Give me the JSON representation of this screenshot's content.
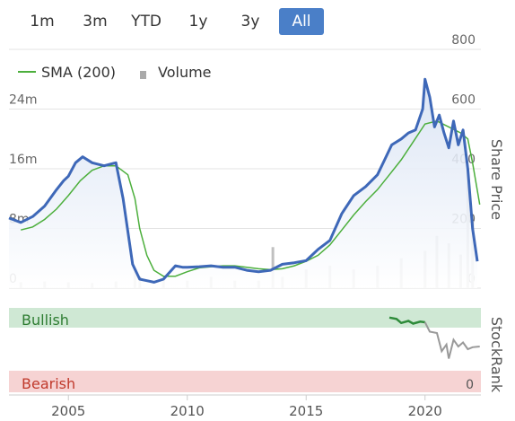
{
  "range_selector": {
    "buttons": [
      "1m",
      "3m",
      "YTD",
      "1y",
      "3y",
      "All"
    ],
    "active": "All",
    "active_color": "#4a7fc8"
  },
  "legend": {
    "sma_label": "SMA (200)",
    "volume_label": "Volume"
  },
  "colors": {
    "price": "#3e68b8",
    "sma": "#4caf3c",
    "volume": "#c0c0c0",
    "bullish_band": "#cfe8d4",
    "bearish_band": "#f6d3d3",
    "stockrank_bull": "#2e8b3a",
    "stockrank": "#999999"
  },
  "chart_data": {
    "type": "line",
    "x_ticks": [
      "2005",
      "2010",
      "2015",
      "2020"
    ],
    "y_right_label": "Share Price",
    "y_right_ticks": [
      "0",
      "200",
      "400",
      "600",
      "800"
    ],
    "y_right_range": [
      0,
      800
    ],
    "y_left_ticks": [
      "0",
      "8m",
      "16m",
      "24m"
    ],
    "y_left_range": [
      0,
      32000000
    ],
    "series": [
      {
        "name": "Share Price",
        "x": [
          2002.5,
          2003.0,
          2003.5,
          2004.0,
          2004.5,
          2004.8,
          2005.0,
          2005.3,
          2005.6,
          2006.0,
          2006.5,
          2007.0,
          2007.3,
          2007.5,
          2007.7,
          2008.0,
          2008.3,
          2008.6,
          2009.0,
          2009.5,
          2009.8,
          2010.0,
          2010.5,
          2011.0,
          2011.5,
          2012.0,
          2012.5,
          2013.0,
          2013.5,
          2014.0,
          2014.5,
          2015.0,
          2015.5,
          2016.0,
          2016.5,
          2017.0,
          2017.5,
          2018.0,
          2018.3,
          2018.6,
          2019.0,
          2019.3,
          2019.6,
          2019.9,
          2020.0,
          2020.2,
          2020.4,
          2020.6,
          2020.8,
          2021.0,
          2021.2,
          2021.4,
          2021.6,
          2021.8,
          2022.0,
          2022.2
        ],
        "y": [
          235,
          220,
          240,
          275,
          330,
          360,
          375,
          420,
          440,
          420,
          410,
          420,
          300,
          190,
          80,
          30,
          25,
          20,
          30,
          75,
          70,
          70,
          72,
          75,
          70,
          70,
          60,
          55,
          60,
          80,
          85,
          92,
          130,
          160,
          250,
          310,
          340,
          380,
          430,
          480,
          500,
          520,
          530,
          600,
          700,
          640,
          540,
          580,
          520,
          470,
          560,
          480,
          530,
          400,
          200,
          90
        ]
      },
      {
        "name": "SMA (200)",
        "x": [
          2003.0,
          2003.5,
          2004.0,
          2004.5,
          2005.0,
          2005.5,
          2006.0,
          2006.5,
          2007.0,
          2007.5,
          2007.8,
          2008.0,
          2008.3,
          2008.6,
          2009.0,
          2009.5,
          2010.0,
          2010.5,
          2011.0,
          2011.5,
          2012.0,
          2012.5,
          2013.0,
          2013.5,
          2014.0,
          2014.5,
          2015.0,
          2015.5,
          2016.0,
          2016.5,
          2017.0,
          2017.5,
          2018.0,
          2018.5,
          2019.0,
          2019.5,
          2020.0,
          2020.5,
          2021.0,
          2021.5,
          2021.8,
          2022.0,
          2022.3
        ],
        "y": [
          195,
          205,
          230,
          265,
          310,
          360,
          395,
          410,
          410,
          380,
          300,
          200,
          110,
          60,
          40,
          40,
          55,
          68,
          72,
          75,
          75,
          70,
          65,
          62,
          65,
          75,
          90,
          110,
          145,
          195,
          245,
          290,
          330,
          380,
          430,
          490,
          550,
          560,
          540,
          520,
          500,
          420,
          280
        ]
      },
      {
        "name": "Volume",
        "x": [
          2003,
          2004,
          2005,
          2006,
          2007,
          2007.8,
          2008,
          2009,
          2010,
          2011,
          2012,
          2013,
          2013.6,
          2014,
          2015,
          2016,
          2017,
          2018,
          2019,
          2020,
          2020.5,
          2021,
          2021.5,
          2021.8,
          2022
        ],
        "y": [
          800000,
          900000,
          800000,
          700000,
          900000,
          2500000,
          1500000,
          1200000,
          1000000,
          1500000,
          1000000,
          1000000,
          5500000,
          1500000,
          2500000,
          3000000,
          2500000,
          3000000,
          4000000,
          5000000,
          7000000,
          6000000,
          4500000,
          16000000,
          9000000
        ]
      }
    ],
    "stockrank": {
      "label": "StockRank",
      "bullish_label": "Bullish",
      "bearish_label": "Bearish",
      "bottom_value_label": "0",
      "range": [
        0,
        100
      ],
      "x": [
        2018.5,
        2018.8,
        2019.0,
        2019.3,
        2019.5,
        2019.8,
        2020.0,
        2020.2,
        2020.5,
        2020.7,
        2020.9,
        2021.0,
        2021.2,
        2021.4,
        2021.6,
        2021.8,
        2022.0,
        2022.3
      ],
      "y": [
        95,
        93,
        87,
        90,
        86,
        89,
        88,
        74,
        72,
        45,
        55,
        34,
        62,
        52,
        58,
        48,
        51,
        52
      ],
      "bullish_until_x": 2020.0
    }
  }
}
